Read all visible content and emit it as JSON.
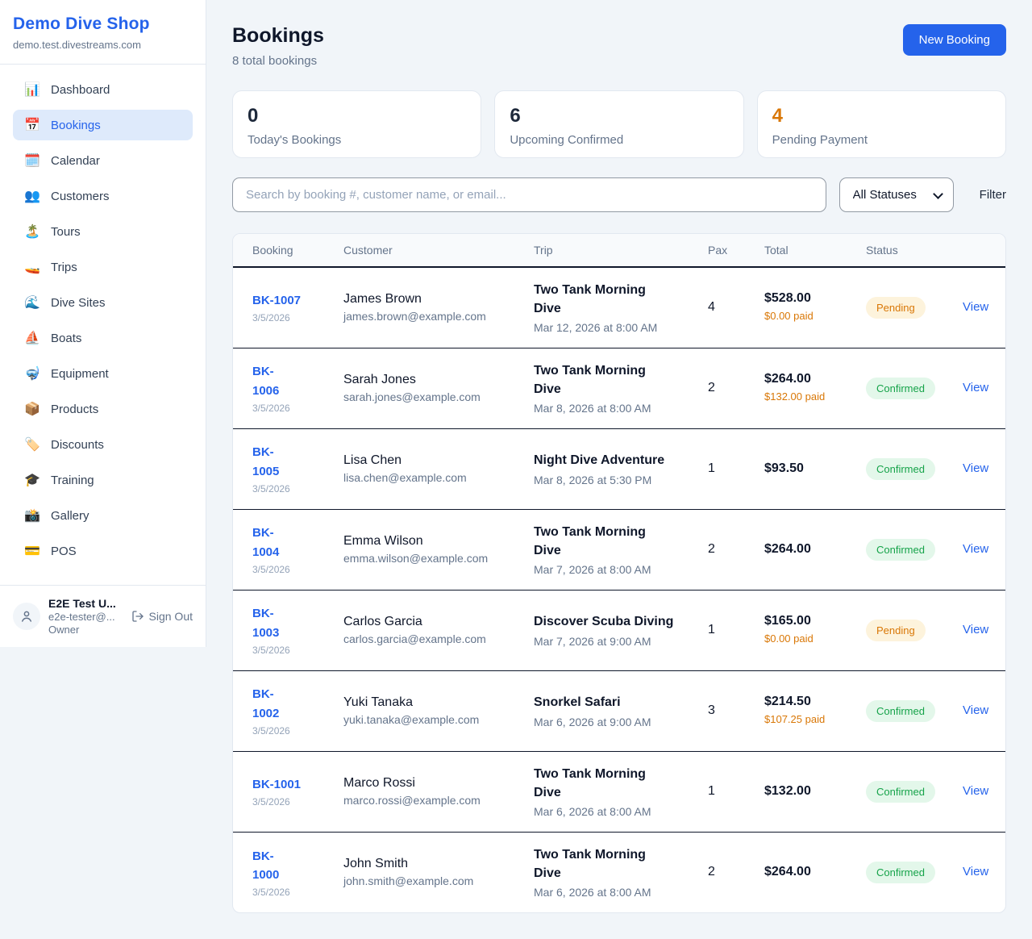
{
  "brand": {
    "name": "Demo Dive Shop",
    "domain": "demo.test.divestreams.com"
  },
  "sidebar": {
    "items": [
      {
        "icon": "📊",
        "name": "dashboard",
        "label": "Dashboard",
        "active": false
      },
      {
        "icon": "📅",
        "name": "bookings",
        "label": "Bookings",
        "active": true
      },
      {
        "icon": "🗓️",
        "name": "calendar",
        "label": "Calendar",
        "active": false
      },
      {
        "icon": "👥",
        "name": "customers",
        "label": "Customers",
        "active": false
      },
      {
        "icon": "🏝️",
        "name": "tours",
        "label": "Tours",
        "active": false
      },
      {
        "icon": "🚤",
        "name": "trips",
        "label": "Trips",
        "active": false
      },
      {
        "icon": "🌊",
        "name": "dive-sites",
        "label": "Dive Sites",
        "active": false
      },
      {
        "icon": "⛵",
        "name": "boats",
        "label": "Boats",
        "active": false
      },
      {
        "icon": "🤿",
        "name": "equipment",
        "label": "Equipment",
        "active": false
      },
      {
        "icon": "📦",
        "name": "products",
        "label": "Products",
        "active": false
      },
      {
        "icon": "🏷️",
        "name": "discounts",
        "label": "Discounts",
        "active": false
      },
      {
        "icon": "🎓",
        "name": "training",
        "label": "Training",
        "active": false
      },
      {
        "icon": "📸",
        "name": "gallery",
        "label": "Gallery",
        "active": false
      },
      {
        "icon": "💳",
        "name": "pos",
        "label": "POS",
        "active": false
      }
    ],
    "user": {
      "name": "E2E Test U...",
      "email": "e2e-tester@...",
      "role": "Owner"
    },
    "sign_out_label": "Sign Out"
  },
  "header": {
    "title": "Bookings",
    "subtitle": "8 total bookings",
    "new_booking_label": "New Booking"
  },
  "stats": [
    {
      "value": "0",
      "label": "Today's Bookings",
      "value_color": "#1E293B"
    },
    {
      "value": "6",
      "label": "Upcoming Confirmed",
      "value_color": "#1E293B"
    },
    {
      "value": "4",
      "label": "Pending Payment",
      "value_color": "#D97706"
    }
  ],
  "filters": {
    "search_placeholder": "Search by booking #, customer name, or email...",
    "status_selected": "All Statuses",
    "filter_label": "Filter"
  },
  "table": {
    "columns": [
      "Booking",
      "Customer",
      "Trip",
      "Pax",
      "Total",
      "Status",
      ""
    ],
    "view_label": "View",
    "rows": [
      {
        "id": "BK-1007",
        "id_wrap": false,
        "date": "3/5/2026",
        "customer": "James Brown",
        "email": "james.brown@example.com",
        "trip": "Two Tank Morning Dive",
        "trip_date": "Mar 12, 2026 at 8:00 AM",
        "pax": "4",
        "total": "$528.00",
        "paid": "$0.00 paid",
        "status": "Pending"
      },
      {
        "id": "BK-1006",
        "id_wrap": true,
        "date": "3/5/2026",
        "customer": "Sarah Jones",
        "email": "sarah.jones@example.com",
        "trip": "Two Tank Morning Dive",
        "trip_date": "Mar 8, 2026 at 8:00 AM",
        "pax": "2",
        "total": "$264.00",
        "paid": "$132.00 paid",
        "status": "Confirmed"
      },
      {
        "id": "BK-1005",
        "id_wrap": true,
        "date": "3/5/2026",
        "customer": "Lisa Chen",
        "email": "lisa.chen@example.com",
        "trip": "Night Dive Adventure",
        "trip_date": "Mar 8, 2026 at 5:30 PM",
        "pax": "1",
        "total": "$93.50",
        "paid": null,
        "status": "Confirmed"
      },
      {
        "id": "BK-1004",
        "id_wrap": true,
        "date": "3/5/2026",
        "customer": "Emma Wilson",
        "email": "emma.wilson@example.com",
        "trip": "Two Tank Morning Dive",
        "trip_date": "Mar 7, 2026 at 8:00 AM",
        "pax": "2",
        "total": "$264.00",
        "paid": null,
        "status": "Confirmed"
      },
      {
        "id": "BK-1003",
        "id_wrap": true,
        "date": "3/5/2026",
        "customer": "Carlos Garcia",
        "email": "carlos.garcia@example.com",
        "trip": "Discover Scuba Diving",
        "trip_date": "Mar 7, 2026 at 9:00 AM",
        "pax": "1",
        "total": "$165.00",
        "paid": "$0.00 paid",
        "status": "Pending"
      },
      {
        "id": "BK-1002",
        "id_wrap": true,
        "date": "3/5/2026",
        "customer": "Yuki Tanaka",
        "email": "yuki.tanaka@example.com",
        "trip": "Snorkel Safari",
        "trip_date": "Mar 6, 2026 at 9:00 AM",
        "pax": "3",
        "total": "$214.50",
        "paid": "$107.25 paid",
        "status": "Confirmed"
      },
      {
        "id": "BK-1001",
        "id_wrap": false,
        "date": "3/5/2026",
        "customer": "Marco Rossi",
        "email": "marco.rossi@example.com",
        "trip": "Two Tank Morning Dive",
        "trip_date": "Mar 6, 2026 at 8:00 AM",
        "pax": "1",
        "total": "$132.00",
        "paid": null,
        "status": "Confirmed"
      },
      {
        "id": "BK-1000",
        "id_wrap": true,
        "date": "3/5/2026",
        "customer": "John Smith",
        "email": "john.smith@example.com",
        "trip": "Two Tank Morning Dive",
        "trip_date": "Mar 6, 2026 at 8:00 AM",
        "pax": "2",
        "total": "$264.00",
        "paid": null,
        "status": "Confirmed"
      }
    ]
  },
  "colors": {
    "accent": "#2563EB",
    "pending": "#D97706",
    "confirmed": "#16A34A",
    "page_bg": "#F1F5F9"
  }
}
